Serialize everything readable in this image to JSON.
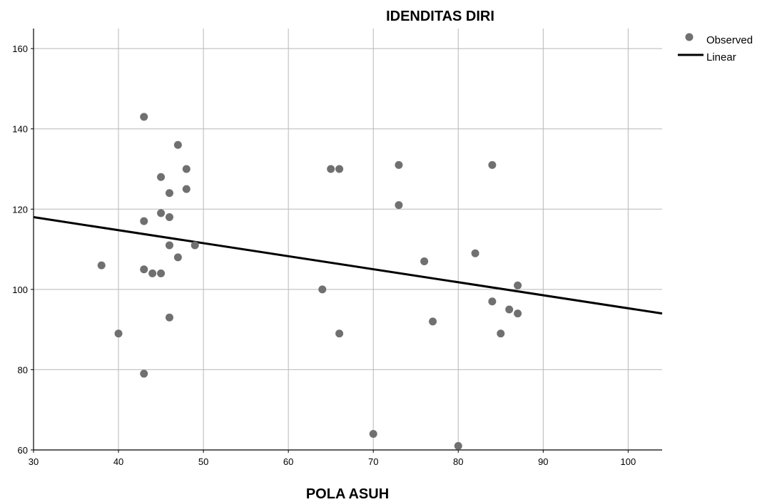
{
  "chart_data": {
    "type": "scatter",
    "title": "IDENDITAS DIRI",
    "xlabel": "POLA ASUH",
    "ylabel": "",
    "xlim": [
      30,
      104
    ],
    "ylim": [
      60,
      165
    ],
    "x_ticks": [
      30,
      40,
      50,
      60,
      70,
      80,
      90,
      100
    ],
    "y_ticks": [
      60,
      80,
      100,
      120,
      140,
      160
    ],
    "grid": true,
    "legend_position": "top-right",
    "legend": {
      "observed": "Observed",
      "linear": "Linear"
    },
    "series": [
      {
        "name": "Observed",
        "kind": "scatter",
        "color": "#707070",
        "points": [
          [
            38,
            106
          ],
          [
            40,
            89
          ],
          [
            43,
            143
          ],
          [
            43,
            117
          ],
          [
            43,
            105
          ],
          [
            43,
            79
          ],
          [
            44,
            104
          ],
          [
            45,
            128
          ],
          [
            45,
            119
          ],
          [
            45,
            104
          ],
          [
            46,
            124
          ],
          [
            46,
            118
          ],
          [
            46,
            111
          ],
          [
            46,
            93
          ],
          [
            47,
            136
          ],
          [
            47,
            108
          ],
          [
            48,
            130
          ],
          [
            48,
            125
          ],
          [
            49,
            111
          ],
          [
            64,
            100
          ],
          [
            65,
            130
          ],
          [
            66,
            130
          ],
          [
            66,
            89
          ],
          [
            70,
            64
          ],
          [
            73,
            131
          ],
          [
            73,
            121
          ],
          [
            76,
            107
          ],
          [
            77,
            92
          ],
          [
            80,
            61
          ],
          [
            82,
            109
          ],
          [
            84,
            131
          ],
          [
            84,
            97
          ],
          [
            85,
            89
          ],
          [
            86,
            95
          ],
          [
            87,
            101
          ],
          [
            87,
            94
          ]
        ]
      },
      {
        "name": "Linear",
        "kind": "line",
        "color": "#000000",
        "points": [
          [
            30,
            118
          ],
          [
            104,
            94
          ]
        ]
      }
    ]
  }
}
